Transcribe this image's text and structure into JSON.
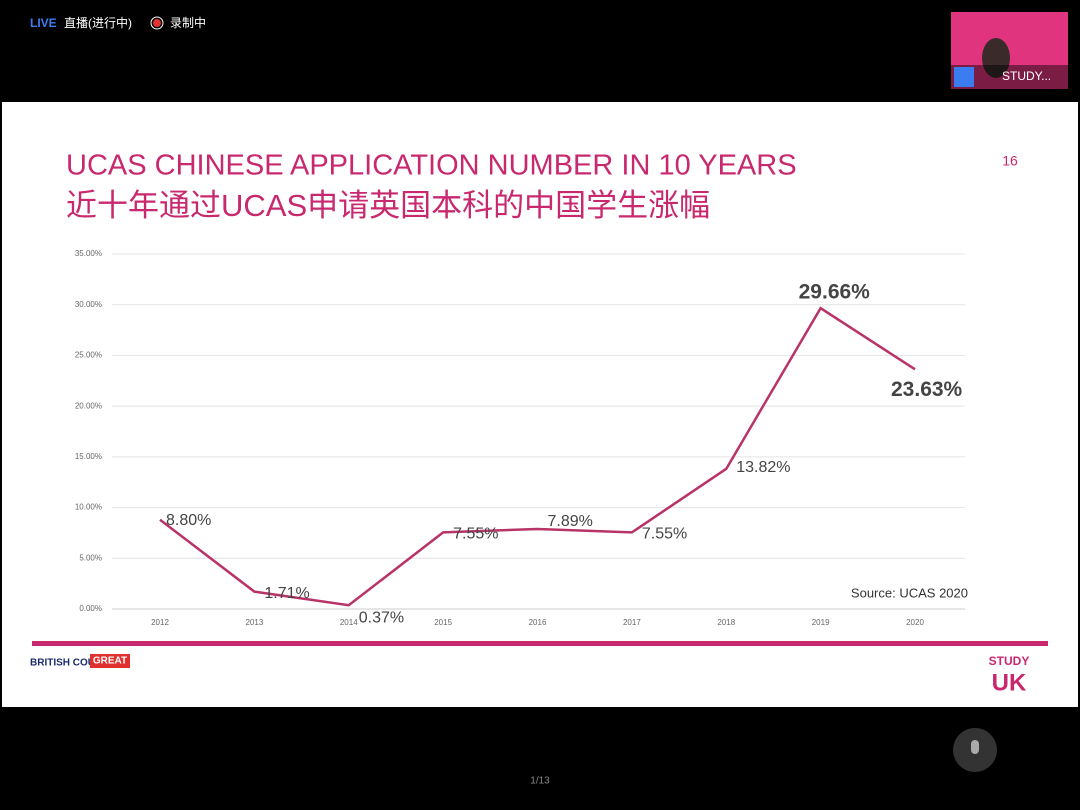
{
  "ui": {
    "live": "LIVE",
    "live_status": "直播(进行中)",
    "recording": "录制中",
    "participant": "STUDY...",
    "page_indicator": "1/13",
    "slide_number": "16",
    "logo_left": "BRITISH COUNCIL",
    "logo_great": "GREAT",
    "logo_right_top": "STUDY",
    "logo_right_bottom": "UK"
  },
  "chart_data": {
    "type": "line",
    "title": "UCAS CHINESE APPLICATION NUMBER IN 10 YEARS",
    "subtitle": "近十年通过UCAS申请英国本科的中国学生涨幅",
    "source": "Source: UCAS 2020",
    "categories": [
      "2012",
      "2013",
      "2014",
      "2015",
      "2016",
      "2017",
      "2018",
      "2019",
      "2020"
    ],
    "values": [
      8.8,
      1.71,
      0.37,
      7.55,
      7.89,
      7.55,
      13.82,
      29.66,
      23.63
    ],
    "value_labels": [
      "8.80%",
      "1.71%",
      "0.37%",
      "7.55%",
      "7.89%",
      "7.55%",
      "13.82%",
      "29.66%",
      "23.63%"
    ],
    "color": "#b83368",
    "ylim": [
      0,
      35
    ],
    "yticks": [
      {
        "value": 0,
        "label": "0.00%"
      },
      {
        "value": 5,
        "label": "5.00%"
      },
      {
        "value": 10,
        "label": "10.00%"
      },
      {
        "value": 15,
        "label": "15.00%"
      },
      {
        "value": 20,
        "label": "20.00%"
      },
      {
        "value": 25,
        "label": "25.00%"
      },
      {
        "value": 30,
        "label": "30.00%"
      },
      {
        "value": 35,
        "label": "35.00%"
      }
    ],
    "grid": true
  }
}
